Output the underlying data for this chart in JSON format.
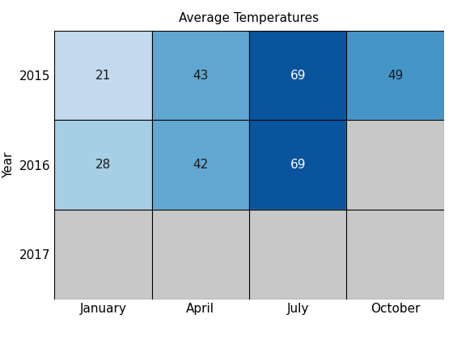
{
  "title": "Average Temperatures",
  "xlabel": "",
  "ylabel": "Year",
  "columns": [
    "January",
    "April",
    "July",
    "October"
  ],
  "rows": [
    "2015",
    "2016",
    "2017"
  ],
  "values": [
    [
      21,
      43,
      69,
      49
    ],
    [
      28,
      42,
      69,
      null
    ],
    [
      null,
      null,
      null,
      null
    ]
  ],
  "vmin": 0,
  "vmax": 80,
  "nan_color": "#c8c8c8",
  "colormap": "Blues",
  "text_dark": "#1a1a1a",
  "text_light": "#ffffff",
  "text_threshold": 60,
  "title_fontsize": 11,
  "label_fontsize": 11,
  "value_fontsize": 11,
  "tick_fontsize": 11,
  "grid_color": "#000000",
  "grid_linewidth": 0.8
}
